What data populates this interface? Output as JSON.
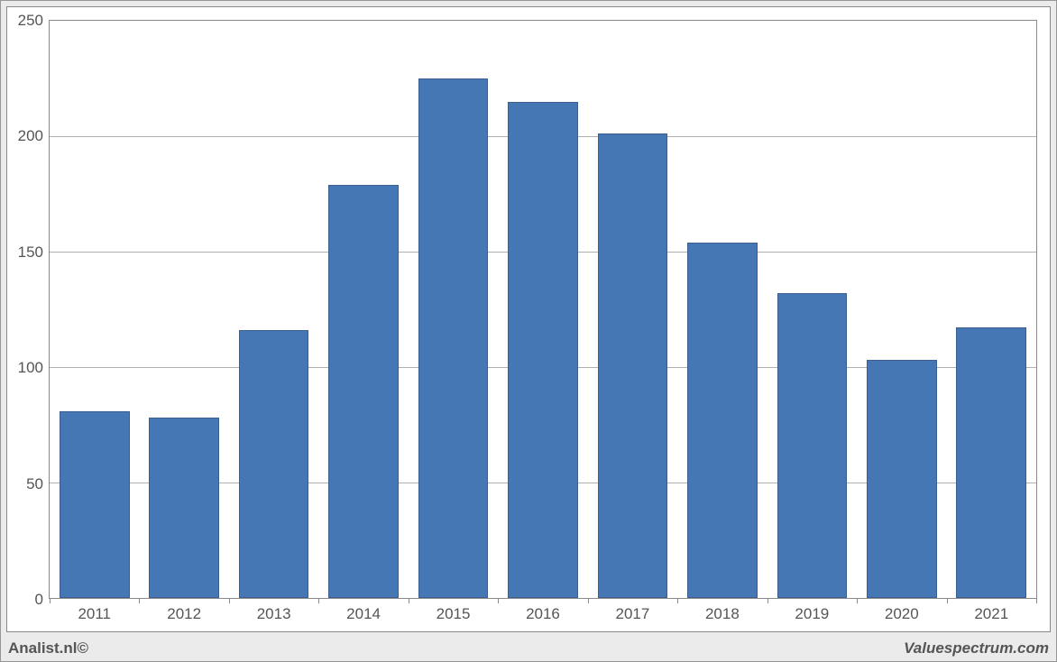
{
  "chart": {
    "type": "bar",
    "categories": [
      "2011",
      "2012",
      "2013",
      "2014",
      "2015",
      "2016",
      "2017",
      "2018",
      "2019",
      "2020",
      "2021"
    ],
    "values": [
      81,
      78,
      116,
      179,
      225,
      215,
      201,
      154,
      132,
      103,
      117
    ],
    "bar_color": "#4577b4",
    "bar_border_color": "#3a5f8f",
    "bar_width_ratio": 0.78,
    "ylim": [
      0,
      250
    ],
    "ytick_step": 50,
    "y_ticks": [
      0,
      50,
      100,
      150,
      200,
      250
    ],
    "grid_color": "#b0b0b0",
    "axis_color": "#8a8a8a",
    "background_color": "#ffffff",
    "outer_background": "#ebebeb",
    "tick_fontsize": 17,
    "tick_color": "#555555"
  },
  "footer": {
    "left": "Analist.nl©",
    "right": "Valuespectrum.com"
  }
}
